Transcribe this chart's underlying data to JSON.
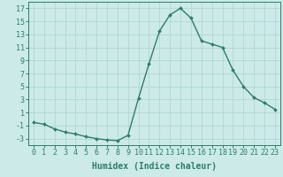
{
  "x": [
    0,
    1,
    2,
    3,
    4,
    5,
    6,
    7,
    8,
    9,
    10,
    11,
    12,
    13,
    14,
    15,
    16,
    17,
    18,
    19,
    20,
    21,
    22,
    23
  ],
  "y": [
    -0.5,
    -0.8,
    -1.5,
    -2.0,
    -2.3,
    -2.7,
    -3.0,
    -3.2,
    -3.3,
    -2.5,
    3.2,
    8.5,
    13.5,
    16.0,
    17.0,
    15.5,
    12.0,
    11.5,
    11.0,
    7.5,
    5.0,
    3.3,
    2.5,
    1.5
  ],
  "line_color": "#2e7d6e",
  "marker": "D",
  "marker_size": 2.0,
  "bg_color": "#cceae7",
  "grid_color": "#b0d8d4",
  "xlabel": "Humidex (Indice chaleur)",
  "yticks": [
    -3,
    -1,
    1,
    3,
    5,
    7,
    9,
    11,
    13,
    15,
    17
  ],
  "xticks": [
    0,
    1,
    2,
    3,
    4,
    5,
    6,
    7,
    8,
    9,
    10,
    11,
    12,
    13,
    14,
    15,
    16,
    17,
    18,
    19,
    20,
    21,
    22,
    23
  ],
  "ylim": [
    -4,
    18
  ],
  "xlim": [
    -0.5,
    23.5
  ],
  "xlabel_fontsize": 7,
  "tick_fontsize": 6,
  "linewidth": 1.0
}
